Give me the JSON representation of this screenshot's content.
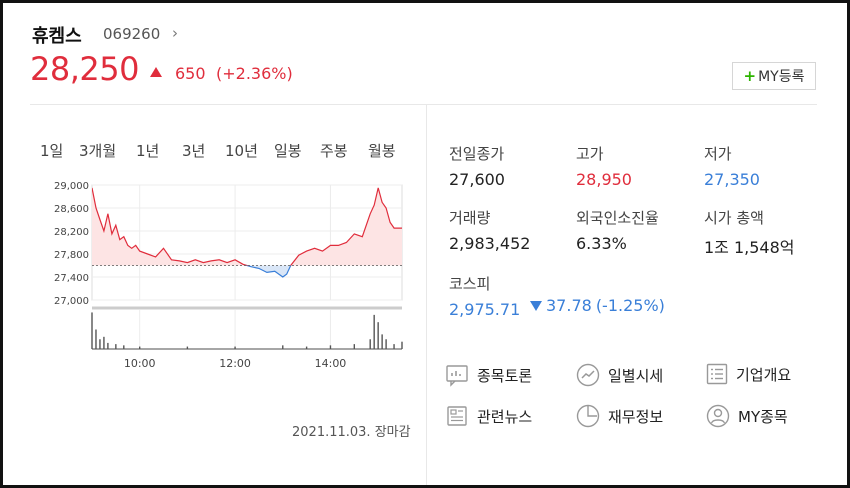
{
  "header": {
    "name": "휴켐스",
    "code": "069260",
    "price": "28,250",
    "change": "650",
    "change_pct": "(+2.36%)",
    "my_button": "MY등록"
  },
  "tabs": [
    "1일",
    "3개월",
    "1년",
    "3년",
    "10년",
    "일봉",
    "주봉",
    "월봉"
  ],
  "active_tab": "1일",
  "chart_data": {
    "type": "area",
    "y_ticks": [
      "29,000",
      "28,600",
      "28,200",
      "27,800",
      "27,400",
      "27,000"
    ],
    "ylim": [
      27000,
      29000
    ],
    "x_ticks": [
      "10:00",
      "12:00",
      "14:00"
    ],
    "reference_line": 27600,
    "session": "09:00-15:30",
    "price_points": [
      [
        "09:00",
        28950
      ],
      [
        "09:05",
        28600
      ],
      [
        "09:10",
        28400
      ],
      [
        "09:15",
        28200
      ],
      [
        "09:20",
        28500
      ],
      [
        "09:25",
        28150
      ],
      [
        "09:30",
        28300
      ],
      [
        "09:35",
        28050
      ],
      [
        "09:40",
        28100
      ],
      [
        "09:45",
        27950
      ],
      [
        "09:50",
        27900
      ],
      [
        "09:55",
        27950
      ],
      [
        "10:00",
        27850
      ],
      [
        "10:10",
        27800
      ],
      [
        "10:20",
        27750
      ],
      [
        "10:30",
        27900
      ],
      [
        "10:40",
        27700
      ],
      [
        "10:50",
        27680
      ],
      [
        "11:00",
        27650
      ],
      [
        "11:10",
        27700
      ],
      [
        "11:20",
        27650
      ],
      [
        "11:30",
        27680
      ],
      [
        "11:40",
        27700
      ],
      [
        "11:50",
        27650
      ],
      [
        "12:00",
        27700
      ],
      [
        "12:10",
        27620
      ],
      [
        "12:20",
        27580
      ],
      [
        "12:30",
        27550
      ],
      [
        "12:40",
        27480
      ],
      [
        "12:50",
        27500
      ],
      [
        "13:00",
        27400
      ],
      [
        "13:05",
        27450
      ],
      [
        "13:10",
        27600
      ],
      [
        "13:20",
        27780
      ],
      [
        "13:30",
        27850
      ],
      [
        "13:40",
        27900
      ],
      [
        "13:50",
        27850
      ],
      [
        "14:00",
        27950
      ],
      [
        "14:10",
        27950
      ],
      [
        "14:20",
        28000
      ],
      [
        "14:30",
        28150
      ],
      [
        "14:40",
        28100
      ],
      [
        "14:50",
        28500
      ],
      [
        "14:55",
        28650
      ],
      [
        "15:00",
        28950
      ],
      [
        "15:05",
        28700
      ],
      [
        "15:10",
        28600
      ],
      [
        "15:15",
        28350
      ],
      [
        "15:20",
        28250
      ],
      [
        "15:30",
        28250
      ]
    ],
    "volume_points": [
      [
        "09:00",
        30
      ],
      [
        "09:05",
        16
      ],
      [
        "09:10",
        8
      ],
      [
        "09:15",
        10
      ],
      [
        "09:20",
        5
      ],
      [
        "09:30",
        4
      ],
      [
        "09:40",
        3
      ],
      [
        "10:00",
        2
      ],
      [
        "11:00",
        2
      ],
      [
        "12:00",
        2
      ],
      [
        "13:00",
        3
      ],
      [
        "13:30",
        2
      ],
      [
        "14:00",
        3
      ],
      [
        "14:30",
        4
      ],
      [
        "14:50",
        8
      ],
      [
        "14:55",
        28
      ],
      [
        "15:00",
        22
      ],
      [
        "15:05",
        12
      ],
      [
        "15:10",
        8
      ],
      [
        "15:20",
        4
      ],
      [
        "15:30",
        6
      ]
    ]
  },
  "closing_note": "2021.11.03. 장마감",
  "stats": [
    {
      "label": "전일종가",
      "value": "27,600",
      "color": ""
    },
    {
      "label": "고가",
      "value": "28,950",
      "color": "red"
    },
    {
      "label": "저가",
      "value": "27,350",
      "color": "blue"
    },
    {
      "label": "거래량",
      "value": "2,983,452",
      "color": ""
    },
    {
      "label": "외국인소진율",
      "value": "6.33%",
      "color": ""
    },
    {
      "label": "시가 총액",
      "value": "1조 1,548억",
      "color": ""
    }
  ],
  "index": {
    "label": "코스피",
    "value": "2,975.71",
    "change": "37.78",
    "change_pct": "(-1.25%)"
  },
  "links": [
    {
      "label": "종목토론",
      "icon": "discussion-icon"
    },
    {
      "label": "일별시세",
      "icon": "trend-icon"
    },
    {
      "label": "기업개요",
      "icon": "list-icon"
    },
    {
      "label": "관련뉴스",
      "icon": "news-icon"
    },
    {
      "label": "재무정보",
      "icon": "pie-icon"
    },
    {
      "label": "MY종목",
      "icon": "user-icon"
    }
  ],
  "colors": {
    "up": "#e02d3c",
    "down": "#3a7fd8",
    "up_fill": "#fde4e4",
    "down_fill": "#d9e6f7"
  }
}
